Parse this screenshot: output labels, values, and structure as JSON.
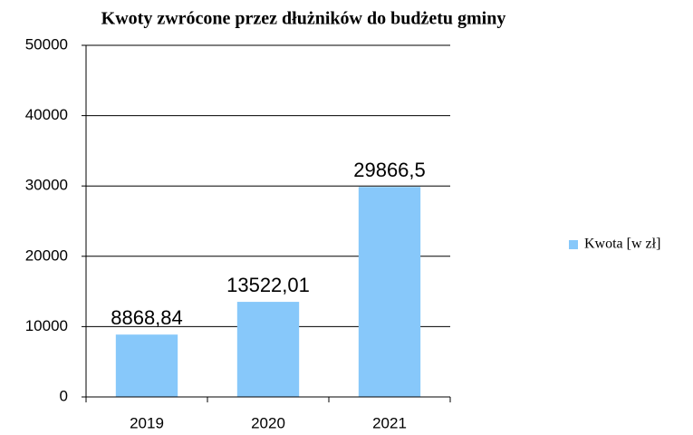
{
  "chart_data": {
    "type": "bar",
    "title": "Kwoty zwrócone przez dłużników do budżetu gminy",
    "categories": [
      "2019",
      "2020",
      "2021"
    ],
    "series": [
      {
        "name": "Kwota [w zł]",
        "color": "#87c8fa",
        "values": [
          8868.84,
          13522.01,
          29866.5
        ],
        "value_labels": [
          "8868,84",
          "13522,01",
          "29866,5"
        ]
      }
    ],
    "ylim": [
      0,
      50000
    ],
    "yticks": [
      0,
      10000,
      20000,
      30000,
      40000,
      50000
    ],
    "grid": true,
    "legend": "right"
  }
}
